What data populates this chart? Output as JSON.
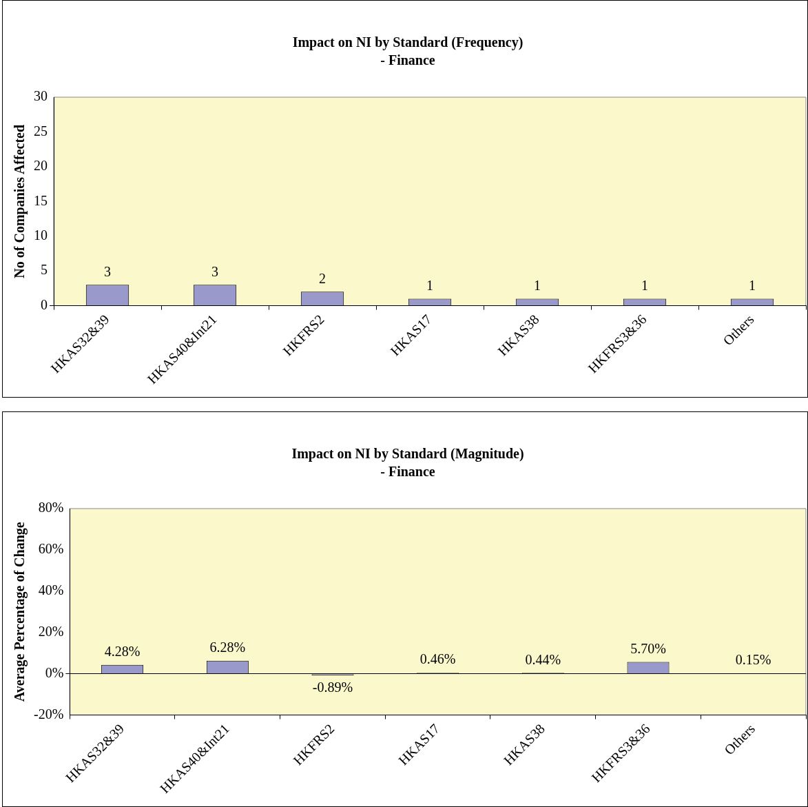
{
  "chart_data": [
    {
      "type": "bar",
      "title": "Impact on NI by Standard (Frequency)",
      "subtitle": "- Finance",
      "ylabel": "No of Companies Affected",
      "categories": [
        "HKAS32&39",
        "HKAS40&Int21",
        "HKFRS2",
        "HKAS17",
        "HKAS38",
        "HKFRS3&36",
        "Others"
      ],
      "values": [
        3,
        3,
        2,
        1,
        1,
        1,
        1
      ],
      "color": "#9999cc",
      "ylim": [
        0,
        30
      ],
      "yticks": [
        0,
        5,
        10,
        15,
        20,
        25,
        30
      ],
      "data_labels": true
    },
    {
      "type": "bar",
      "title": "Impact on NI by Standard (Magnitude)",
      "subtitle": "- Finance",
      "ylabel": "Average Percentage of Change",
      "categories": [
        "HKAS32&39",
        "HKAS40&Int21",
        "HKFRS2",
        "HKAS17",
        "HKAS38",
        "HKFRS3&36",
        "Others"
      ],
      "values": [
        4.28,
        6.28,
        -0.89,
        0.46,
        0.44,
        5.7,
        0.15
      ],
      "value_labels": [
        "4.28%",
        "6.28%",
        "-0.89%",
        "0.46%",
        "0.44%",
        "5.70%",
        "0.15%"
      ],
      "color": "#9999cc",
      "ylim": [
        -20,
        80
      ],
      "yticks": [
        {
          "value": -20,
          "label": "-20%"
        },
        {
          "value": 0,
          "label": "0%"
        },
        {
          "value": 20,
          "label": "20%"
        },
        {
          "value": 40,
          "label": "40%"
        },
        {
          "value": 60,
          "label": "60%"
        },
        {
          "value": 80,
          "label": "80%"
        }
      ]
    }
  ]
}
